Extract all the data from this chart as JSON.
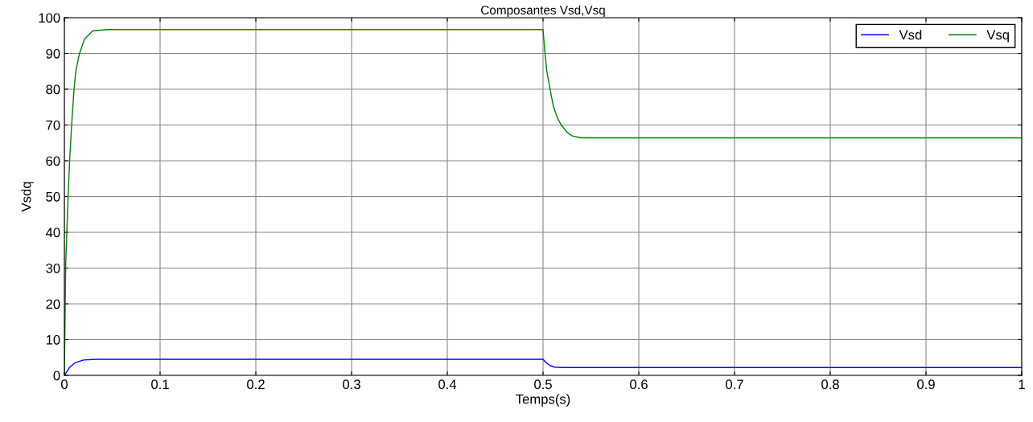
{
  "chart_data": {
    "type": "line",
    "title": "Composantes Vsd,Vsq",
    "xlabel": "Temps(s)",
    "ylabel": "Vsdq",
    "xlim": [
      0,
      1
    ],
    "ylim": [
      0,
      100
    ],
    "xticks": [
      0,
      0.1,
      0.2,
      0.3,
      0.4,
      0.5,
      0.6,
      0.7,
      0.8,
      0.9,
      1
    ],
    "yticks": [
      0,
      10,
      20,
      30,
      40,
      50,
      60,
      70,
      80,
      90,
      100
    ],
    "grid": true,
    "legend": "top right",
    "series": [
      {
        "name": "Vsd",
        "color": "#0000ff",
        "x": [
          0,
          0.0056,
          0.011,
          0.02,
          0.034,
          0.5,
          0.503,
          0.507,
          0.512,
          0.52,
          1
        ],
        "values": [
          0,
          2.3,
          3.5,
          4.3,
          4.5,
          4.5,
          3.6,
          2.8,
          2.3,
          2.2,
          2.2
        ]
      },
      {
        "name": "Vsq",
        "color": "#008000",
        "x": [
          0,
          0.0014,
          0.0034,
          0.0056,
          0.0076,
          0.0099,
          0.0118,
          0.0155,
          0.021,
          0.0296,
          0.045,
          0.5,
          0.502,
          0.504,
          0.508,
          0.511,
          0.515,
          0.519,
          0.525,
          0.53,
          0.54,
          1
        ],
        "values": [
          0,
          31,
          46.6,
          60.6,
          70,
          79.3,
          84.7,
          89.7,
          94,
          96.3,
          96.7,
          96.7,
          90,
          85,
          79,
          75,
          72,
          70,
          68,
          67,
          66.4,
          66.4
        ]
      }
    ]
  }
}
